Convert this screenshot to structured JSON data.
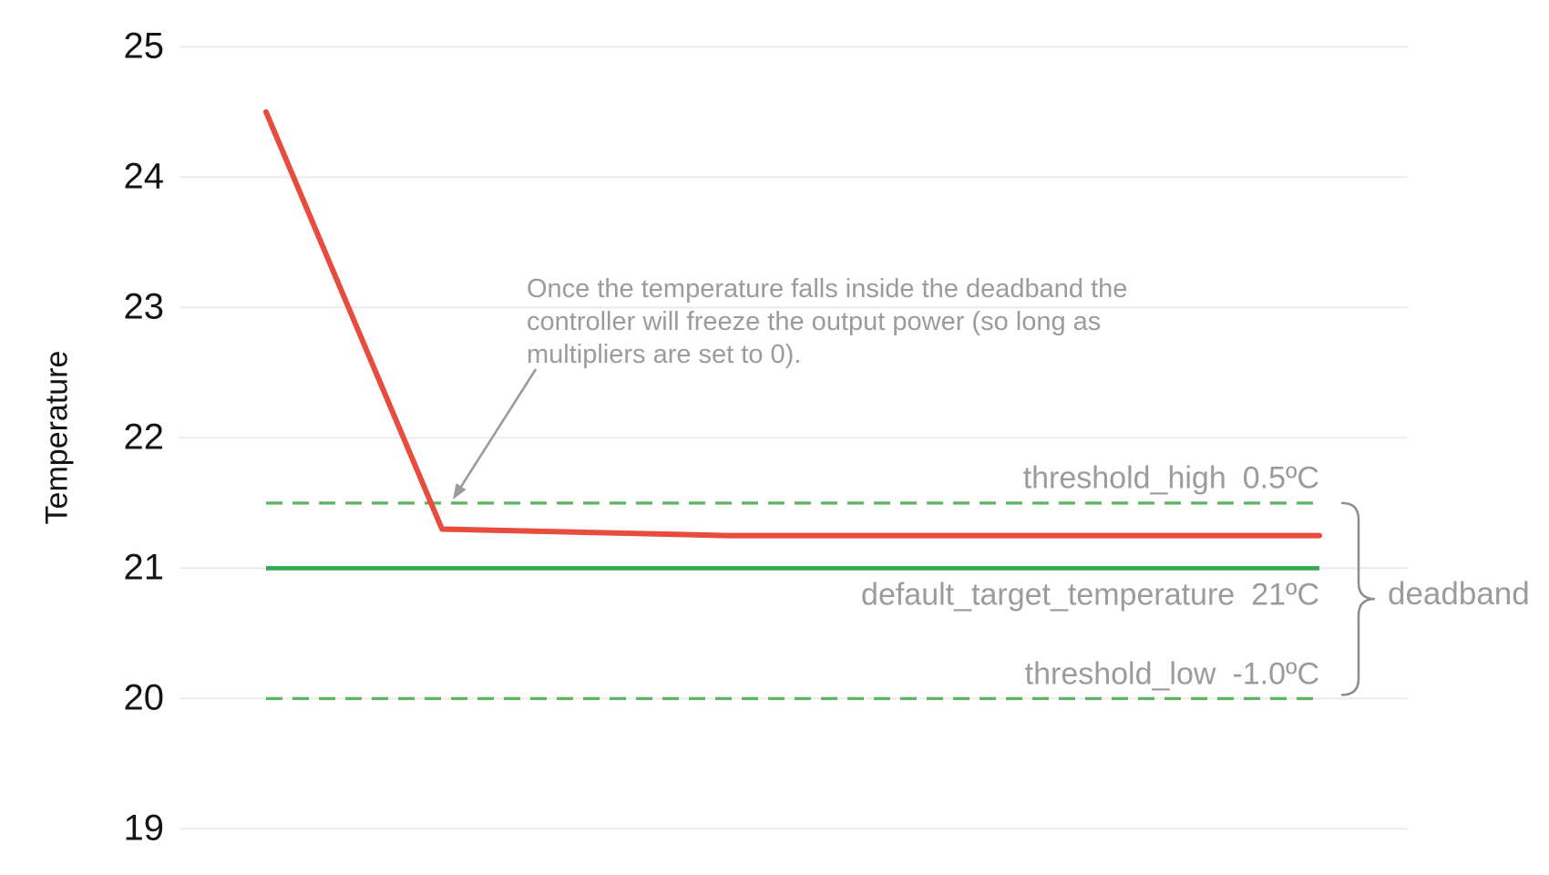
{
  "chart_data": {
    "type": "line",
    "title": "",
    "xlabel": "",
    "ylabel": "Temperature",
    "ylim": [
      19,
      25
    ],
    "yticks": [
      19,
      20,
      21,
      22,
      23,
      24,
      25
    ],
    "grid": true,
    "legend_position": "none",
    "series": [
      {
        "name": "temperature",
        "color": "#e74c3c",
        "style": "solid",
        "points": [
          {
            "x": 0.0,
            "y": 24.5
          },
          {
            "x": 0.167,
            "y": 21.3
          },
          {
            "x": 0.439,
            "y": 21.25
          },
          {
            "x": 1.0,
            "y": 21.25
          }
        ]
      }
    ],
    "reference_lines": [
      {
        "name": "threshold_high",
        "value_text": "0.5ºC",
        "value": 21.5,
        "style": "dashed",
        "color": "#60b564"
      },
      {
        "name": "default_target_temperature",
        "value_text": "21ºC",
        "value": 21.0,
        "style": "solid",
        "color": "#2fa84f"
      },
      {
        "name": "threshold_low",
        "value_text": "-1.0ºC",
        "value": 20.0,
        "style": "dashed",
        "color": "#60b564"
      }
    ],
    "annotation": {
      "text": "Once the temperature falls inside the deadband the\ncontroller will freeze the output power (so long as\nmultipliers are set to 0)."
    },
    "brace_label": "deadband",
    "colors": {
      "grid": "#ebebeb",
      "tick_text": "#141414",
      "annotation_text": "#9b9b9b",
      "arrow": "#9b9b9b",
      "brace": "#8e8e8e"
    }
  }
}
